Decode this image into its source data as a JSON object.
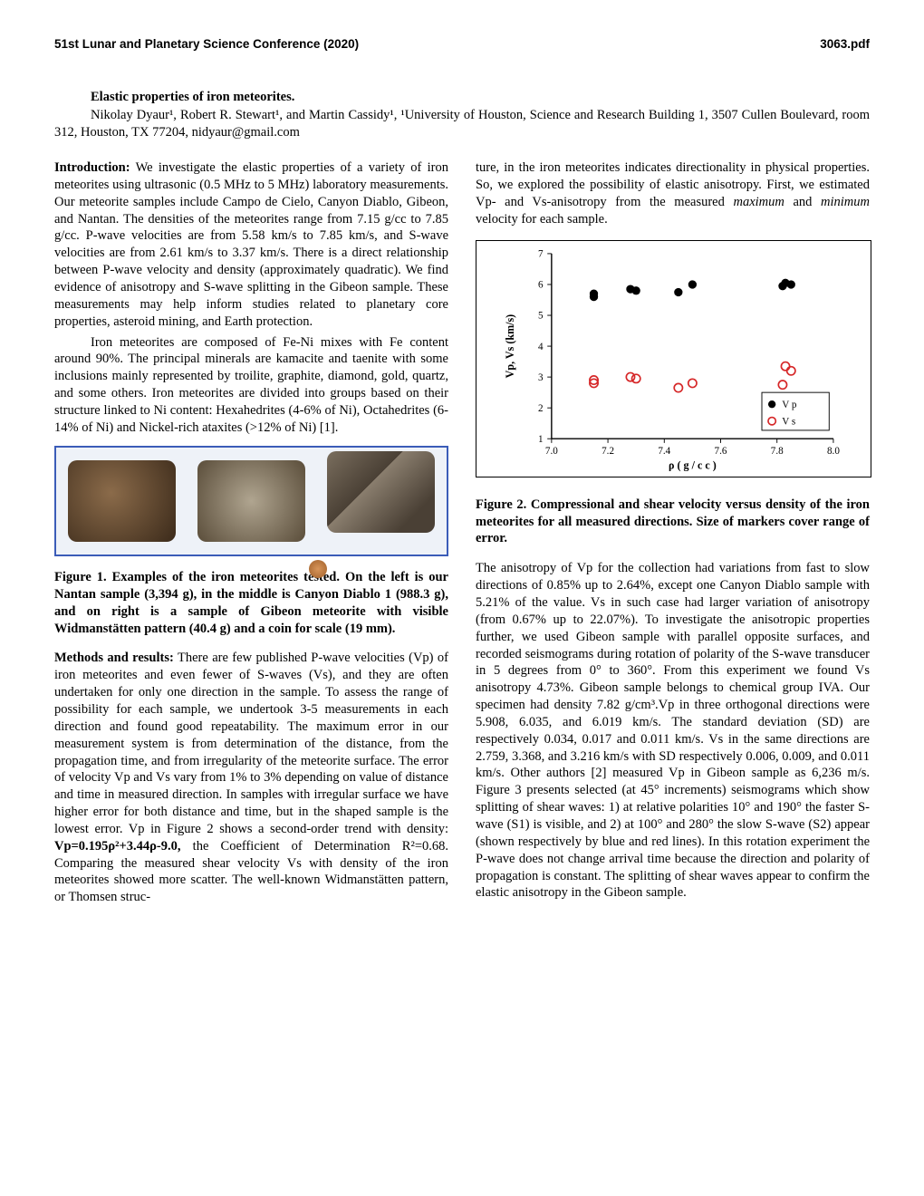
{
  "header": {
    "left": "51st Lunar and Planetary Science Conference (2020)",
    "right": "3063.pdf"
  },
  "title": "Elastic properties of iron meteorites.",
  "authors_html": "Nikolay Dyaur¹, Robert R. Stewart¹, and Martin Cassidy¹, ¹University of Houston, Science and Research Building 1, 3507 Cullen Boulevard, room 312, Houston, TX 77204, nidyaur@gmail.com",
  "col1": {
    "p1_head": "Introduction:",
    "p1": " We investigate the elastic properties of a variety of iron meteorites using ultrasonic (0.5 MHz to 5 MHz) laboratory measurements. Our meteorite samples include Campo de Cielo, Canyon Diablo, Gibeon, and Nantan. The densities of the meteorites range from 7.15 g/cc to 7.85 g/cc. P-wave velocities are from 5.58 km/s to 7.85 km/s, and S-wave velocities are from 2.61 km/s to 3.37 km/s. There is a direct relationship between P-wave velocity and density (approximately quadratic). We find evidence of anisotropy and S-wave splitting in the Gibeon sample. These measurements may help inform studies related to planetary core properties, asteroid mining, and Earth protection.",
    "p2": "Iron meteorites are composed of Fe-Ni mixes with Fe content around 90%. The principal minerals are kamacite and taenite with some inclusions mainly represented by troilite, graphite, diamond, gold, quartz, and some others. Iron meteorites are divided into groups based on their structure linked to Ni content: Hexahedrites (4-6% of Ni), Octahedrites (6-14% of Ni) and Nickel-rich ataxites (>12% of Ni) [1].",
    "fig1_caption": "Figure 1. Examples of the iron meteorites tested. On the left is our Nantan sample (3,394 g), in the middle is Canyon Diablo 1 (988.3 g), and on right is a sample of Gibeon meteorite with visible Widmanstätten pattern (40.4 g) and a coin for scale (19 mm).",
    "p3_head": "Methods and results:",
    "p3": " There are few published P-wave velocities (Vp) of iron meteorites and even fewer of S-waves (Vs), and they are often undertaken for only one direction in the sample. To assess the range of possibility for each sample, we undertook 3-5 measurements in each direction and found good repeatability. The maximum error in our measurement system is from determination of the distance, from the propagation time, and from irregularity of the meteorite surface. The error of velocity Vp and Vs vary from 1% to 3% depending on value of distance and time in measured direction. In samples with irregular surface we have higher error for both distance and time, but in the shaped sample is the lowest error. Vp in Figure 2 shows a second-order trend with density: ",
    "p3_eq": "Vp=0.195ρ²+3.44ρ-9.0,",
    "p3_cont": " the Coefficient of Determination R²=0.68. Comparing the measured shear velocity Vs with density of the iron meteorites showed more scatter. The well-known Widmanstätten pattern, or Thomsen struc-"
  },
  "col2": {
    "p1": "ture, in the iron meteorites indicates directionality in physical properties. So, we explored the possibility of elastic anisotropy. First, we estimated Vp- and Vs-anisotropy from the measured ",
    "p1_em1": "maximum",
    "p1_mid": " and ",
    "p1_em2": "minimum",
    "p1_end": " velocity for each sample.",
    "fig2_caption": "Figure 2. Compressional and shear velocity versus density of the iron meteorites for all measured directions. Size of markers cover range of error.",
    "p2": "The anisotropy of Vp for the collection had variations from fast to slow directions of 0.85% up to 2.64%, except one Canyon Diablo sample with 5.21% of the value. Vs in such case had larger variation of anisotropy (from 0.67% up to 22.07%). To investigate the anisotropic properties further, we used Gibeon sample with parallel opposite surfaces, and recorded seismograms during rotation of polarity of the S-wave transducer in 5 degrees from 0° to 360°. From this experiment we found Vs anisotropy 4.73%. Gibeon sample belongs to chemical group IVA. Our specimen had density 7.82 g/cm³.Vp in three orthogonal directions were 5.908, 6.035, and 6.019 km/s. The standard deviation (SD) are respectively 0.034, 0.017 and 0.011 km/s. Vs in the same directions are 2.759, 3.368, and 3.216 km/s with SD respectively 0.006, 0.009, and 0.011 km/s. Other authors [2] measured Vp in Gibeon sample as 6,236 m/s. Figure 3 presents selected (at 45° increments) seismograms which show splitting of shear waves: 1) at relative polarities 10° and 190° the faster S-wave (S1) is visible, and 2) at 100° and 280° the slow S-wave (S2) appear (shown respectively by blue and red lines). In this rotation experiment the P-wave does not change arrival time because the direction and polarity of propagation is constant. The splitting of shear waves appear to confirm the elastic anisotropy in the Gibeon sample."
  },
  "fig2_chart": {
    "type": "scatter",
    "xlabel": "ρ  ( g / c c )",
    "ylabel": "Vp, Vs (km/s)",
    "xlim": [
      7.0,
      8.0
    ],
    "ylim": [
      1,
      7
    ],
    "xticks": [
      7.0,
      7.2,
      7.4,
      7.6,
      7.8,
      8.0
    ],
    "yticks": [
      1,
      2,
      3,
      4,
      5,
      6,
      7
    ],
    "background_color": "#ffffff",
    "axis_color": "#000000",
    "marker_size": 5,
    "legend": {
      "items": [
        {
          "label": "V p",
          "marker": "filled-circle",
          "color": "#000000"
        },
        {
          "label": "V s",
          "marker": "open-circle",
          "color": "#d62728"
        }
      ],
      "position": "lower-right",
      "box": true
    },
    "series": [
      {
        "name": "Vp",
        "color": "#000000",
        "marker": "filled-circle",
        "points": [
          {
            "x": 7.15,
            "y": 5.6
          },
          {
            "x": 7.15,
            "y": 5.7
          },
          {
            "x": 7.28,
            "y": 5.85
          },
          {
            "x": 7.3,
            "y": 5.8
          },
          {
            "x": 7.45,
            "y": 5.75
          },
          {
            "x": 7.5,
            "y": 6.0
          },
          {
            "x": 7.82,
            "y": 5.95
          },
          {
            "x": 7.83,
            "y": 6.05
          },
          {
            "x": 7.85,
            "y": 6.0
          }
        ]
      },
      {
        "name": "Vs",
        "color": "#d62728",
        "marker": "open-circle",
        "points": [
          {
            "x": 7.15,
            "y": 2.9
          },
          {
            "x": 7.15,
            "y": 2.8
          },
          {
            "x": 7.28,
            "y": 3.0
          },
          {
            "x": 7.3,
            "y": 2.95
          },
          {
            "x": 7.45,
            "y": 2.65
          },
          {
            "x": 7.5,
            "y": 2.8
          },
          {
            "x": 7.82,
            "y": 2.75
          },
          {
            "x": 7.83,
            "y": 3.35
          },
          {
            "x": 7.85,
            "y": 3.2
          }
        ]
      }
    ]
  }
}
